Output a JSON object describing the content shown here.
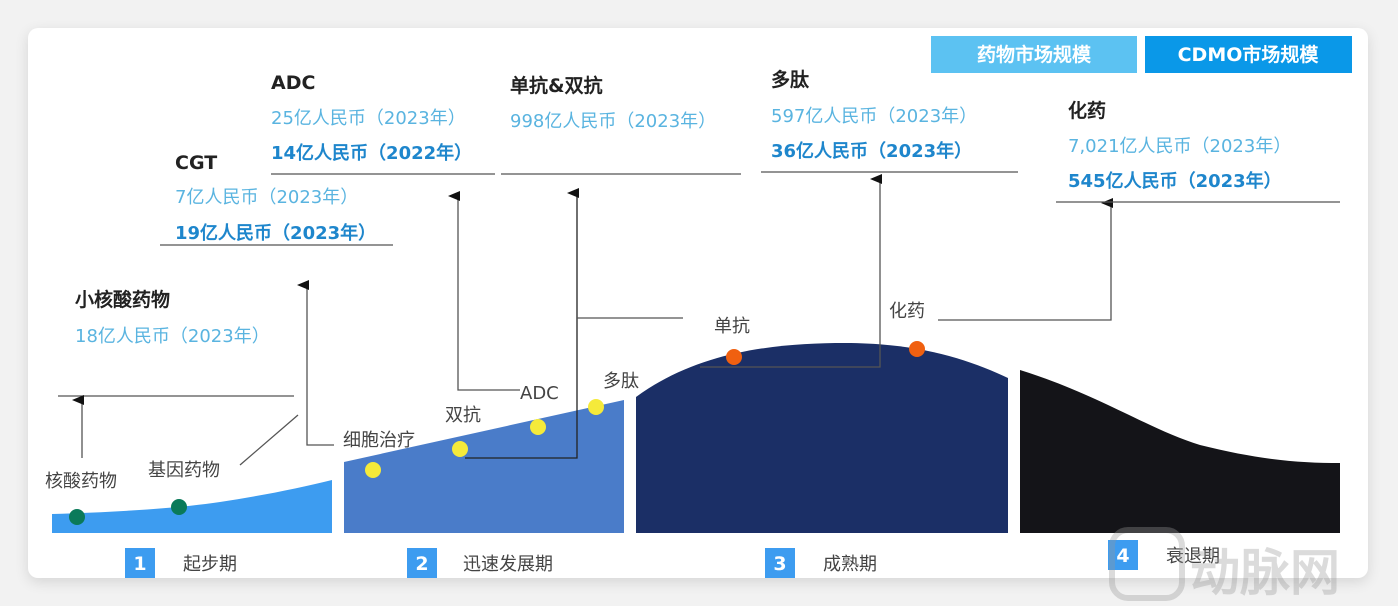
{
  "legend": {
    "drug_market": {
      "label": "药物市场规模",
      "color": "#5cc2f2"
    },
    "cdmo_market": {
      "label": "CDMO市场规模",
      "color": "#0a98e8"
    }
  },
  "callouts": {
    "small_nucleic": {
      "title": "小核酸药物",
      "drug": "18亿人民币（2023年）"
    },
    "cgt": {
      "title": "CGT",
      "drug": "7亿人民币（2023年）",
      "cdmo": "19亿人民币（2023年）"
    },
    "adc": {
      "title": "ADC",
      "drug": "25亿人民币（2023年）",
      "cdmo": "14亿人民币（2022年）"
    },
    "mab_bsab": {
      "title": "单抗&双抗",
      "drug": "998亿人民币（2023年）"
    },
    "peptide": {
      "title": "多肽",
      "drug": "597亿人民币（2023年）",
      "cdmo": "36亿人民币（2023年）"
    },
    "chemical": {
      "title": "化药",
      "drug": "7,021亿人民币（2023年）",
      "cdmo": "545亿人民币（2023年）"
    }
  },
  "points": [
    "核酸药物",
    "基因药物",
    "细胞治疗",
    "双抗",
    "ADC",
    "多肽",
    "单抗",
    "化药"
  ],
  "stages": [
    {
      "num": "1",
      "label": "起步期",
      "color": "#3d9cf0"
    },
    {
      "num": "2",
      "label": "迅速发展期",
      "color": "#4a7cc9"
    },
    {
      "num": "3",
      "label": "成熟期",
      "color": "#1b2f66"
    },
    {
      "num": "4",
      "label": "衰退期",
      "color": "#141418"
    }
  ],
  "watermark": "动脉网"
}
